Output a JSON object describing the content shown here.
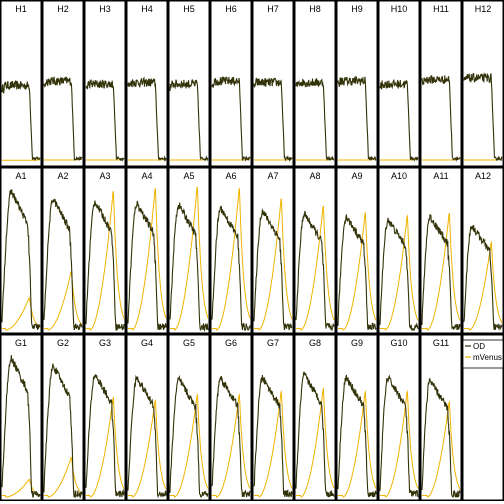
{
  "chart_data": {
    "type": "line",
    "layout": "small-multiples",
    "rows": [
      [
        "H1",
        "H2",
        "H3",
        "H4",
        "H5",
        "H6",
        "H7",
        "H8",
        "H9",
        "H10",
        "H11",
        "H12"
      ],
      [
        "A1",
        "A2",
        "A3",
        "A4",
        "A5",
        "A6",
        "A7",
        "A8",
        "A9",
        "A10",
        "A11",
        "A12"
      ],
      [
        "G1",
        "G2",
        "G3",
        "G4",
        "G5",
        "G6",
        "G7",
        "G8",
        "G9",
        "G10",
        "G11",
        ""
      ]
    ],
    "series": [
      {
        "name": "OD",
        "color": "#33330a"
      },
      {
        "name": "mVenus",
        "color": "#f0b400"
      }
    ],
    "legend": {
      "entries": [
        "OD",
        "mVenus"
      ],
      "placement": "bottom-right panel (row 3, column 12)"
    },
    "grid": false,
    "panel_params": {
      "H": {
        "od_plateau": [
          0.52,
          0.55,
          0.53,
          0.54,
          0.53,
          0.55,
          0.54,
          0.54,
          0.55,
          0.53,
          0.56,
          0.57
        ],
        "mv_level": [
          0.04,
          0.05,
          0.05,
          0.05,
          0.05,
          0.05,
          0.05,
          0.05,
          0.05,
          0.05,
          0.05,
          0.05
        ]
      },
      "A": {
        "od_peak": [
          0.93,
          0.88,
          0.86,
          0.85,
          0.84,
          0.82,
          0.8,
          0.78,
          0.76,
          0.74,
          0.76,
          0.7
        ],
        "mv_peak": [
          0.22,
          0.4,
          0.95,
          0.97,
          0.98,
          0.97,
          0.9,
          0.85,
          0.8,
          0.78,
          0.8,
          0.6
        ]
      },
      "G": {
        "od_peak": [
          0.93,
          0.88,
          0.82,
          0.8,
          0.79,
          0.8,
          0.8,
          0.82,
          0.8,
          0.8,
          0.78
        ],
        "mv_peak": [
          0.12,
          0.27,
          0.68,
          0.66,
          0.7,
          0.7,
          0.72,
          0.74,
          0.72,
          0.72,
          0.65
        ]
      }
    }
  }
}
